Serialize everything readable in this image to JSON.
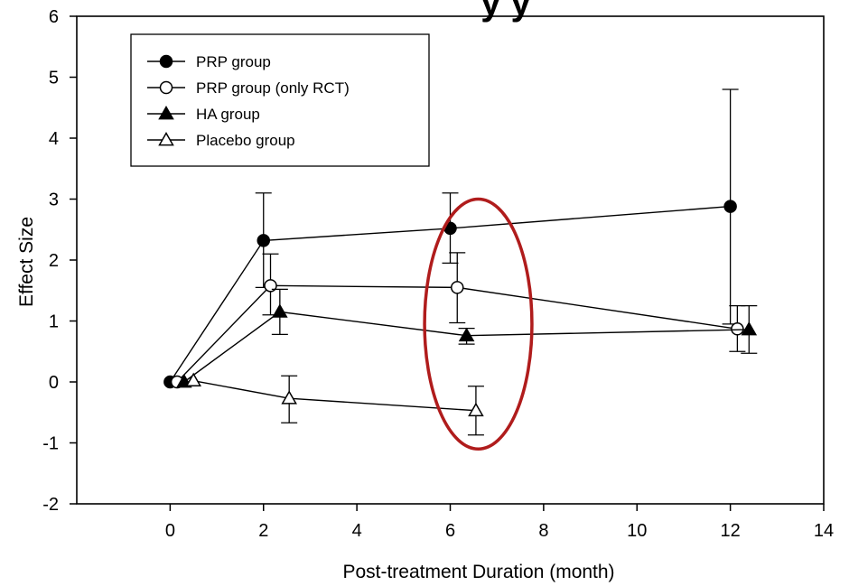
{
  "chart_data": {
    "type": "line",
    "title": "y y",
    "xlabel": "Post-treatment Duration (month)",
    "ylabel": "Effect Size",
    "xlim": [
      -2,
      14
    ],
    "ylim": [
      -2,
      6
    ],
    "xticks": [
      0,
      2,
      4,
      6,
      8,
      10,
      12,
      14
    ],
    "yticks": [
      -2,
      -1,
      0,
      1,
      2,
      3,
      4,
      5,
      6
    ],
    "grid": false,
    "legend_position": "top-left",
    "series": [
      {
        "name": "PRP group",
        "marker": "filled-circle",
        "x": [
          0,
          2,
          6,
          12
        ],
        "y": [
          0,
          2.32,
          2.52,
          2.88
        ],
        "err_low": [
          0,
          1.55,
          1.95,
          0.95
        ],
        "err_high": [
          0,
          3.1,
          3.1,
          4.8
        ]
      },
      {
        "name": "PRP group (only RCT)",
        "marker": "open-circle",
        "x": [
          0.15,
          2.15,
          6.15,
          12.15
        ],
        "y": [
          0,
          1.58,
          1.55,
          0.87
        ],
        "err_low": [
          0,
          1.1,
          0.97,
          0.5
        ],
        "err_high": [
          0,
          2.1,
          2.12,
          1.25
        ]
      },
      {
        "name": "HA group",
        "marker": "filled-triangle",
        "x": [
          0.3,
          2.35,
          6.35,
          12.4
        ],
        "y": [
          0,
          1.15,
          0.76,
          0.86
        ],
        "err_low": [
          0,
          0.78,
          0.62,
          0.47
        ],
        "err_high": [
          0,
          1.52,
          0.88,
          1.25
        ]
      },
      {
        "name": "Placebo group",
        "marker": "open-triangle",
        "x": [
          0.5,
          2.55,
          6.55
        ],
        "y": [
          0.02,
          -0.27,
          -0.47
        ],
        "err_low": [
          0.02,
          -0.67,
          -0.87
        ],
        "err_high": [
          0.02,
          0.1,
          -0.07
        ]
      }
    ],
    "annotations": [
      {
        "type": "ellipse",
        "color": "#b01c1c",
        "center_x": 6.6,
        "center_y": 0.95,
        "rx": 1.15,
        "ry": 2.05
      }
    ],
    "colors": {
      "line": "#000000",
      "highlight": "#b01c1c"
    }
  }
}
